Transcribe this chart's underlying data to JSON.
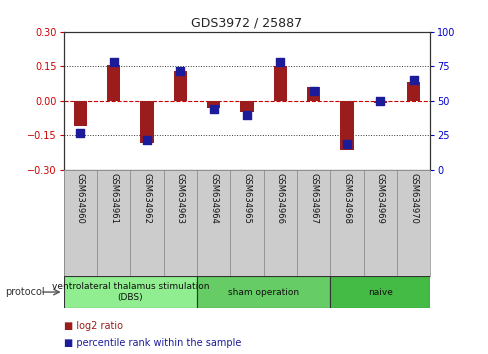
{
  "title": "GDS3972 / 25887",
  "samples": [
    "GSM634960",
    "GSM634961",
    "GSM634962",
    "GSM634963",
    "GSM634964",
    "GSM634965",
    "GSM634966",
    "GSM634967",
    "GSM634968",
    "GSM634969",
    "GSM634970"
  ],
  "log2_ratio": [
    -0.11,
    0.155,
    -0.185,
    0.13,
    -0.03,
    -0.05,
    0.15,
    0.06,
    -0.215,
    -0.01,
    0.08
  ],
  "percentile_rank": [
    27,
    78,
    22,
    72,
    44,
    40,
    78,
    57,
    19,
    50,
    65
  ],
  "ylim_left": [
    -0.3,
    0.3
  ],
  "ylim_right": [
    0,
    100
  ],
  "yticks_left": [
    -0.3,
    -0.15,
    0,
    0.15,
    0.3
  ],
  "yticks_right": [
    0,
    25,
    50,
    75,
    100
  ],
  "hlines_dotted": [
    -0.15,
    0.15
  ],
  "hline_dashed": 0.0,
  "bar_color": "#9B1C1C",
  "dot_color": "#1C1C9B",
  "dashed_line_color": "#CC0000",
  "grid_color": "#000000",
  "protocol_groups": [
    {
      "label": "ventrolateral thalamus stimulation\n(DBS)",
      "start": 0,
      "end": 3,
      "color": "#90EE90"
    },
    {
      "label": "sham operation",
      "start": 4,
      "end": 7,
      "color": "#66CC66"
    },
    {
      "label": "naive",
      "start": 8,
      "end": 10,
      "color": "#44BB44"
    }
  ],
  "left_axis_color": "#CC0000",
  "right_axis_color": "#0000CC",
  "bar_width": 0.4,
  "dot_size": 28
}
